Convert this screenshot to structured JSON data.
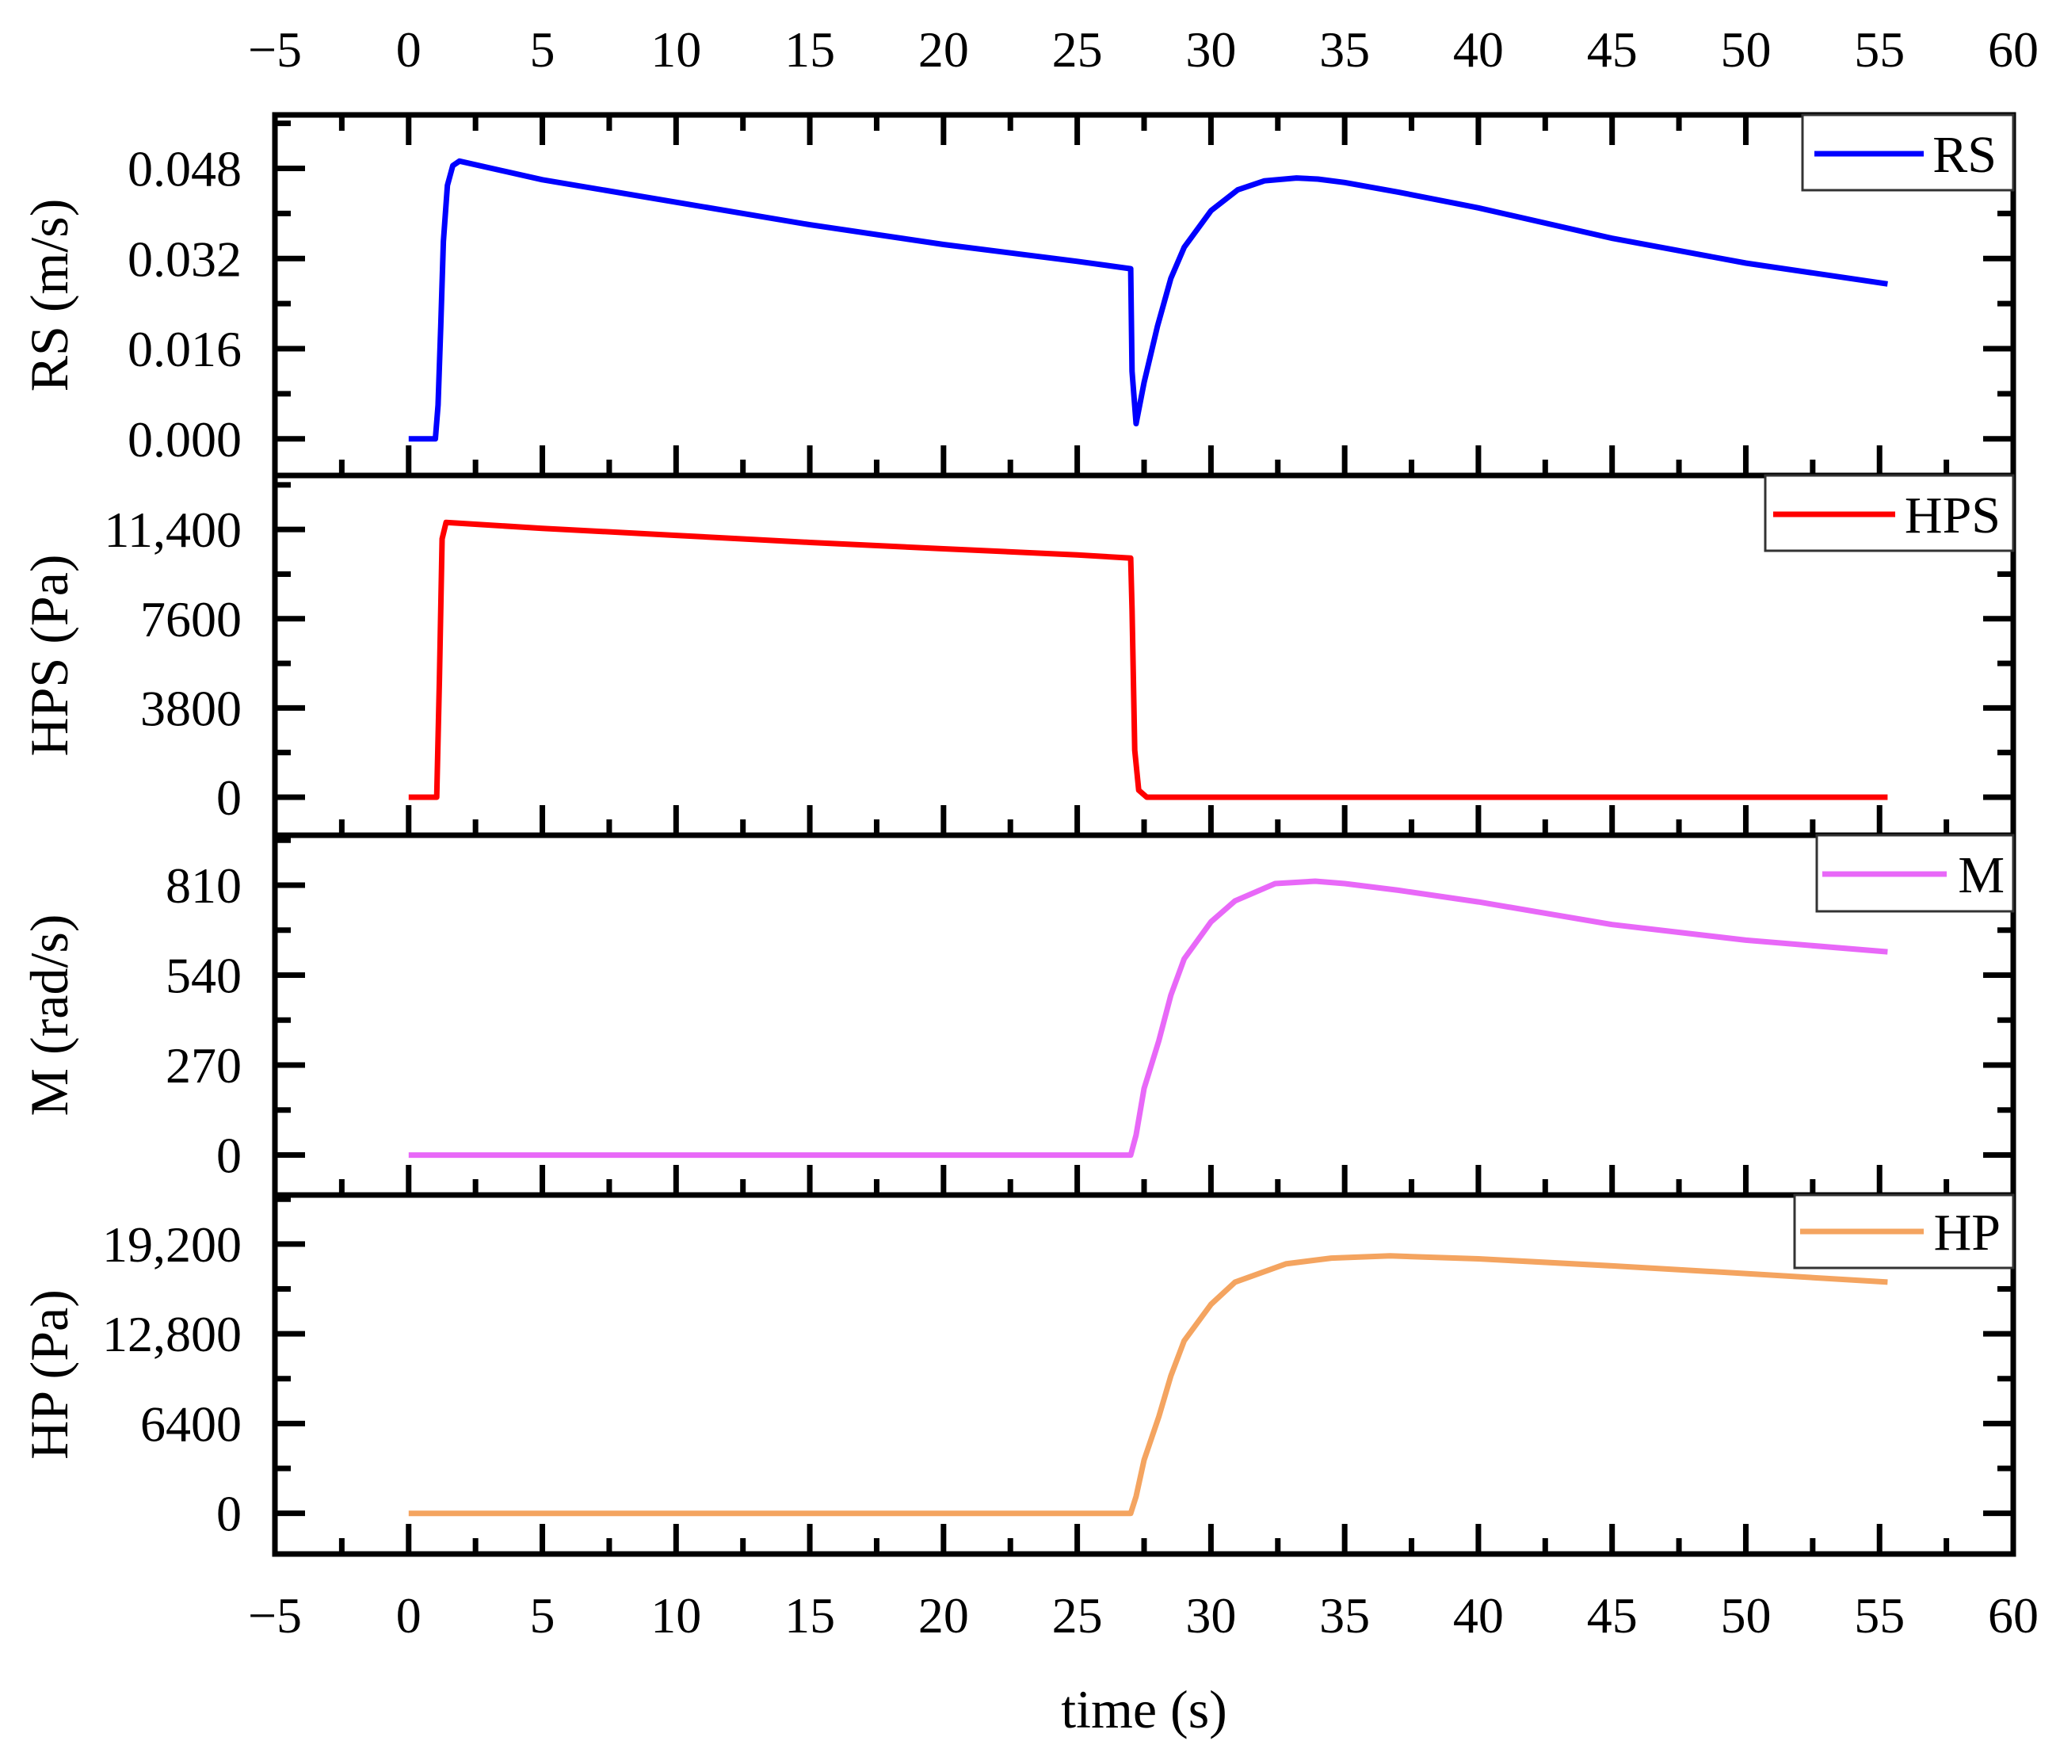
{
  "chart_data": {
    "type": "line",
    "layout": "stacked-panels-shared-x",
    "xlabel": "time (s)",
    "xlim": [
      -5,
      60
    ],
    "x_ticks": [
      -5,
      0,
      5,
      10,
      15,
      20,
      25,
      30,
      35,
      40,
      45,
      50,
      55,
      60
    ],
    "x_tick_labels": [
      "−5",
      "0",
      "5",
      "10",
      "15",
      "20",
      "25",
      "30",
      "35",
      "40",
      "45",
      "50",
      "55",
      "60"
    ],
    "x_tick_labels_top": true,
    "x_tick_labels_bottom": true,
    "grid": false,
    "legend_position": "upper right of each panel",
    "panels": [
      {
        "id": "rs",
        "ylabel": "RS (m/s)",
        "legend": "RS",
        "color": "#0000ff",
        "ylim": [
          -0.0065,
          0.0575
        ],
        "y_ticks": [
          0.0,
          0.016,
          0.032,
          0.048
        ],
        "y_tick_labels": [
          "0.000",
          "0.016",
          "0.032",
          "0.048"
        ],
        "x": [
          0,
          1.0,
          1.1,
          1.2,
          1.3,
          1.45,
          1.65,
          1.9,
          5,
          10,
          15,
          20,
          25,
          27.0,
          27.05,
          27.2,
          27.5,
          28,
          28.5,
          29,
          30,
          31,
          32,
          33.2,
          34,
          35,
          37,
          40,
          45,
          50,
          55.3
        ],
        "y": [
          0,
          0,
          0.006,
          0.02,
          0.035,
          0.045,
          0.0485,
          0.0493,
          0.046,
          0.042,
          0.038,
          0.0345,
          0.0315,
          0.0302,
          0.012,
          0.0027,
          0.01,
          0.02,
          0.0285,
          0.034,
          0.0405,
          0.0442,
          0.0458,
          0.0463,
          0.0461,
          0.0455,
          0.0438,
          0.041,
          0.0356,
          0.0312,
          0.0275
        ]
      },
      {
        "id": "hps",
        "ylabel": "HPS (Pa)",
        "legend": "HPS",
        "color": "#ff0000",
        "ylim": [
          -1620,
          13700
        ],
        "y_ticks": [
          0,
          3800,
          7600,
          11400
        ],
        "y_tick_labels": [
          "0",
          "3800",
          "7600",
          "11,400"
        ],
        "x": [
          0,
          1.05,
          1.15,
          1.25,
          1.4,
          5,
          10,
          15,
          20,
          25,
          27.0,
          27.05,
          27.15,
          27.3,
          27.6,
          55.3
        ],
        "y": [
          0,
          0,
          5000,
          11000,
          11700,
          11450,
          11150,
          10850,
          10580,
          10320,
          10180,
          8000,
          2000,
          300,
          0,
          0
        ]
      },
      {
        "id": "m",
        "ylabel": "M (rad/s)",
        "legend": "M",
        "color": "#e868f8",
        "ylim": [
          -120,
          960
        ],
        "y_ticks": [
          0,
          270,
          540,
          810
        ],
        "y_tick_labels": [
          "0",
          "270",
          "540",
          "810"
        ],
        "x": [
          0,
          27.0,
          27.2,
          27.5,
          28.05,
          28.5,
          29.0,
          30.0,
          30.9,
          32.4,
          33.9,
          35,
          37,
          40,
          45,
          50,
          55.3
        ],
        "y": [
          0,
          0,
          60,
          200,
          343,
          480,
          589,
          700,
          763,
          815,
          822,
          815,
          795,
          760,
          692,
          645,
          610
        ]
      },
      {
        "id": "hp",
        "ylabel": "HP (Pa)",
        "legend": "HP",
        "color": "#f4a460",
        "ylim": [
          -2900,
          22700
        ],
        "y_ticks": [
          0,
          6400,
          12800,
          19200
        ],
        "y_tick_labels": [
          "0",
          "6400",
          "12,800",
          "19,200"
        ],
        "x": [
          0,
          27.0,
          27.2,
          27.5,
          28.05,
          28.5,
          29.0,
          30.0,
          30.9,
          32.8,
          34.5,
          36.7,
          40,
          45,
          50,
          55.3
        ],
        "y": [
          0,
          0,
          1200,
          3800,
          6890,
          9800,
          12310,
          14900,
          16490,
          17790,
          18200,
          18360,
          18150,
          17650,
          17100,
          16490
        ]
      }
    ]
  }
}
